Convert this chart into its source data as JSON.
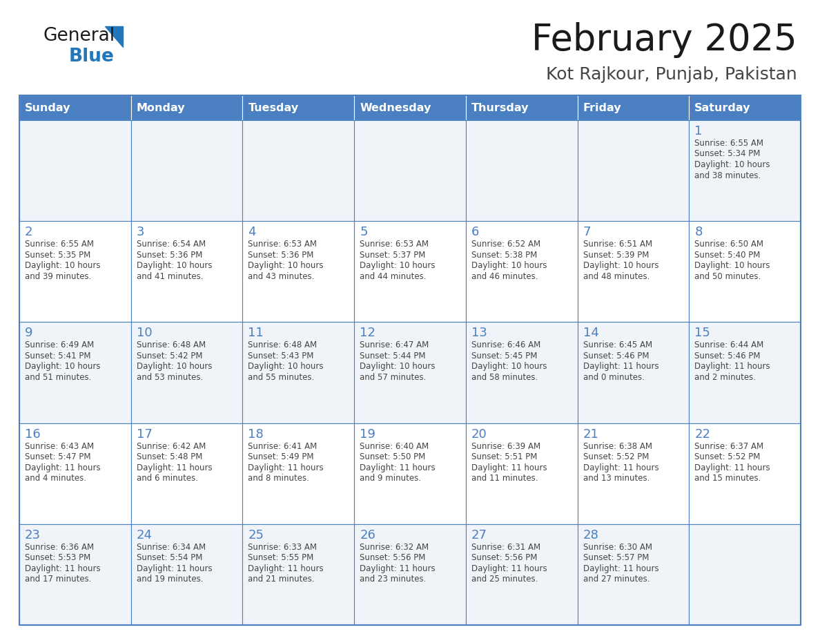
{
  "title": "February 2025",
  "subtitle": "Kot Rajkour, Punjab, Pakistan",
  "days_of_week": [
    "Sunday",
    "Monday",
    "Tuesday",
    "Wednesday",
    "Thursday",
    "Friday",
    "Saturday"
  ],
  "header_bg_color": "#4a7fc1",
  "header_text_color": "#FFFFFF",
  "row_bg_colors": [
    "#f0f4f8",
    "#ffffff"
  ],
  "title_color": "#1a1a1a",
  "subtitle_color": "#444444",
  "day_number_color": "#4a7fc1",
  "cell_text_color": "#444444",
  "grid_color": "#4a7fc1",
  "logo_general_color": "#1a1a1a",
  "logo_blue_color": "#2277BB",
  "logo_triangle_color": "#2277BB",
  "calendar_data": [
    [
      null,
      null,
      null,
      null,
      null,
      null,
      {
        "day": 1,
        "sunrise": "6:55 AM",
        "sunset": "5:34 PM",
        "daylight": "10 hours\nand 38 minutes."
      }
    ],
    [
      {
        "day": 2,
        "sunrise": "6:55 AM",
        "sunset": "5:35 PM",
        "daylight": "10 hours\nand 39 minutes."
      },
      {
        "day": 3,
        "sunrise": "6:54 AM",
        "sunset": "5:36 PM",
        "daylight": "10 hours\nand 41 minutes."
      },
      {
        "day": 4,
        "sunrise": "6:53 AM",
        "sunset": "5:36 PM",
        "daylight": "10 hours\nand 43 minutes."
      },
      {
        "day": 5,
        "sunrise": "6:53 AM",
        "sunset": "5:37 PM",
        "daylight": "10 hours\nand 44 minutes."
      },
      {
        "day": 6,
        "sunrise": "6:52 AM",
        "sunset": "5:38 PM",
        "daylight": "10 hours\nand 46 minutes."
      },
      {
        "day": 7,
        "sunrise": "6:51 AM",
        "sunset": "5:39 PM",
        "daylight": "10 hours\nand 48 minutes."
      },
      {
        "day": 8,
        "sunrise": "6:50 AM",
        "sunset": "5:40 PM",
        "daylight": "10 hours\nand 50 minutes."
      }
    ],
    [
      {
        "day": 9,
        "sunrise": "6:49 AM",
        "sunset": "5:41 PM",
        "daylight": "10 hours\nand 51 minutes."
      },
      {
        "day": 10,
        "sunrise": "6:48 AM",
        "sunset": "5:42 PM",
        "daylight": "10 hours\nand 53 minutes."
      },
      {
        "day": 11,
        "sunrise": "6:48 AM",
        "sunset": "5:43 PM",
        "daylight": "10 hours\nand 55 minutes."
      },
      {
        "day": 12,
        "sunrise": "6:47 AM",
        "sunset": "5:44 PM",
        "daylight": "10 hours\nand 57 minutes."
      },
      {
        "day": 13,
        "sunrise": "6:46 AM",
        "sunset": "5:45 PM",
        "daylight": "10 hours\nand 58 minutes."
      },
      {
        "day": 14,
        "sunrise": "6:45 AM",
        "sunset": "5:46 PM",
        "daylight": "11 hours\nand 0 minutes."
      },
      {
        "day": 15,
        "sunrise": "6:44 AM",
        "sunset": "5:46 PM",
        "daylight": "11 hours\nand 2 minutes."
      }
    ],
    [
      {
        "day": 16,
        "sunrise": "6:43 AM",
        "sunset": "5:47 PM",
        "daylight": "11 hours\nand 4 minutes."
      },
      {
        "day": 17,
        "sunrise": "6:42 AM",
        "sunset": "5:48 PM",
        "daylight": "11 hours\nand 6 minutes."
      },
      {
        "day": 18,
        "sunrise": "6:41 AM",
        "sunset": "5:49 PM",
        "daylight": "11 hours\nand 8 minutes."
      },
      {
        "day": 19,
        "sunrise": "6:40 AM",
        "sunset": "5:50 PM",
        "daylight": "11 hours\nand 9 minutes."
      },
      {
        "day": 20,
        "sunrise": "6:39 AM",
        "sunset": "5:51 PM",
        "daylight": "11 hours\nand 11 minutes."
      },
      {
        "day": 21,
        "sunrise": "6:38 AM",
        "sunset": "5:52 PM",
        "daylight": "11 hours\nand 13 minutes."
      },
      {
        "day": 22,
        "sunrise": "6:37 AM",
        "sunset": "5:52 PM",
        "daylight": "11 hours\nand 15 minutes."
      }
    ],
    [
      {
        "day": 23,
        "sunrise": "6:36 AM",
        "sunset": "5:53 PM",
        "daylight": "11 hours\nand 17 minutes."
      },
      {
        "day": 24,
        "sunrise": "6:34 AM",
        "sunset": "5:54 PM",
        "daylight": "11 hours\nand 19 minutes."
      },
      {
        "day": 25,
        "sunrise": "6:33 AM",
        "sunset": "5:55 PM",
        "daylight": "11 hours\nand 21 minutes."
      },
      {
        "day": 26,
        "sunrise": "6:32 AM",
        "sunset": "5:56 PM",
        "daylight": "11 hours\nand 23 minutes."
      },
      {
        "day": 27,
        "sunrise": "6:31 AM",
        "sunset": "5:56 PM",
        "daylight": "11 hours\nand 25 minutes."
      },
      {
        "day": 28,
        "sunrise": "6:30 AM",
        "sunset": "5:57 PM",
        "daylight": "11 hours\nand 27 minutes."
      },
      null
    ]
  ]
}
